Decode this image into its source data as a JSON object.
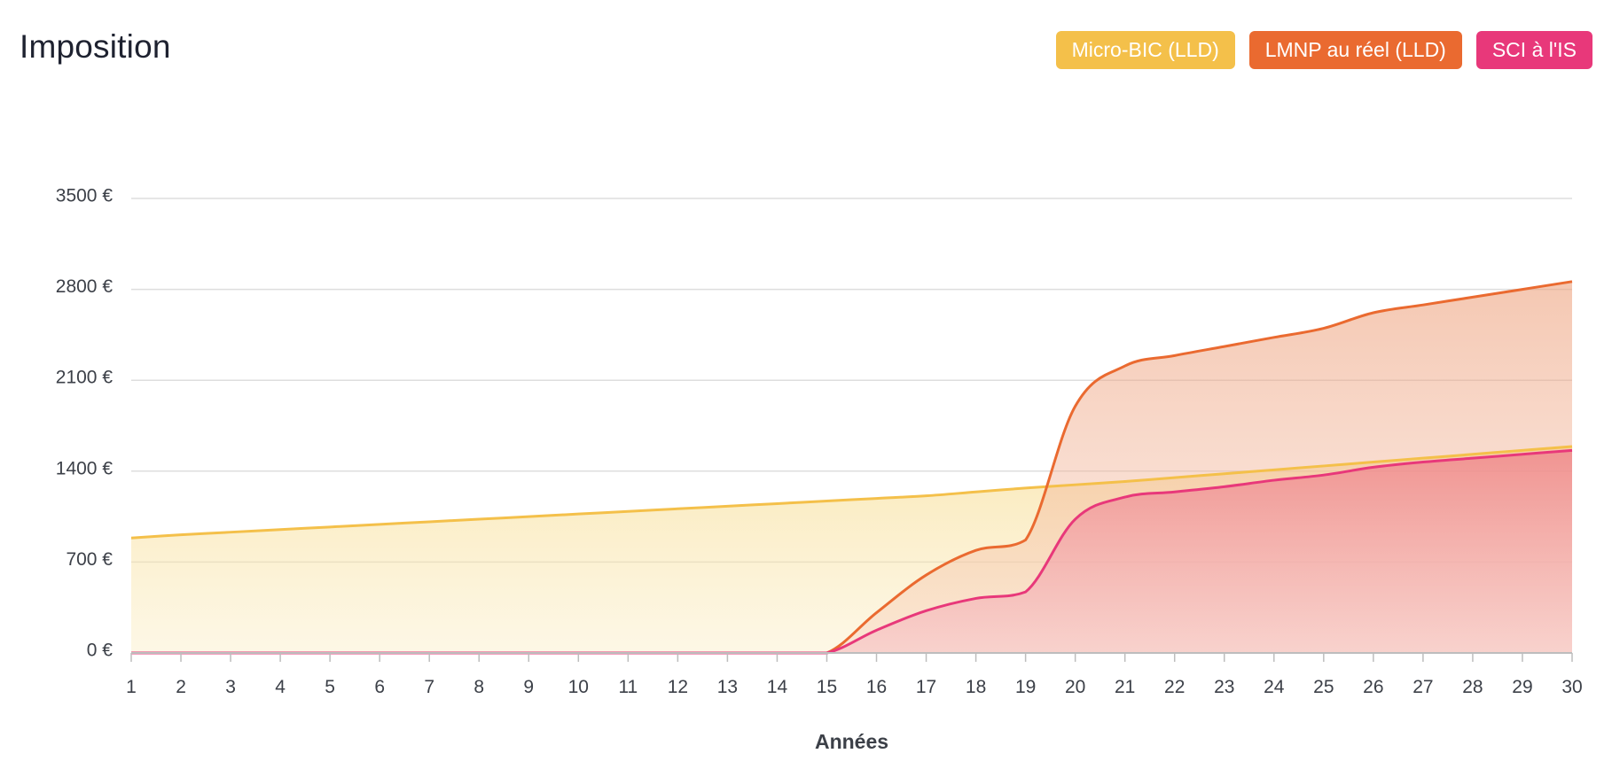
{
  "header": {
    "title": "Imposition"
  },
  "legend": [
    {
      "label": "Micro-BIC (LLD)",
      "color": "#f4c04a"
    },
    {
      "label": "LMNP au réel (LLD)",
      "color": "#ea6a30"
    },
    {
      "label": "SCI à l'IS",
      "color": "#e8387a"
    }
  ],
  "chart_data": {
    "type": "area",
    "title": "",
    "xlabel": "Années",
    "ylabel": "",
    "x": [
      1,
      2,
      3,
      4,
      5,
      6,
      7,
      8,
      9,
      10,
      11,
      12,
      13,
      14,
      15,
      16,
      17,
      18,
      19,
      20,
      21,
      22,
      23,
      24,
      25,
      26,
      27,
      28,
      29,
      30
    ],
    "ylim": [
      0,
      3500
    ],
    "yticks": [
      0,
      700,
      1400,
      2100,
      2800,
      3500
    ],
    "ytick_labels": [
      "0 €",
      "700 €",
      "1400 €",
      "2100 €",
      "2800 €",
      "3500 €"
    ],
    "grid": true,
    "series": [
      {
        "name": "Micro-BIC (LLD)",
        "color": "#f4c04a",
        "values": [
          885,
          910,
          930,
          950,
          970,
          990,
          1010,
          1030,
          1050,
          1070,
          1090,
          1110,
          1130,
          1150,
          1170,
          1190,
          1210,
          1240,
          1270,
          1295,
          1320,
          1350,
          1380,
          1410,
          1440,
          1470,
          1500,
          1530,
          1560,
          1590
        ]
      },
      {
        "name": "LMNP au réel (LLD)",
        "color": "#ea6a30",
        "values": [
          0,
          0,
          0,
          0,
          0,
          0,
          0,
          0,
          0,
          0,
          0,
          0,
          0,
          0,
          0,
          310,
          600,
          790,
          870,
          1900,
          2210,
          2290,
          2360,
          2430,
          2500,
          2620,
          2680,
          2740,
          2800,
          2860
        ]
      },
      {
        "name": "SCI à l'IS",
        "color": "#e8387a",
        "values": [
          0,
          0,
          0,
          0,
          0,
          0,
          0,
          0,
          0,
          0,
          0,
          0,
          0,
          0,
          0,
          175,
          325,
          420,
          470,
          1030,
          1200,
          1240,
          1280,
          1330,
          1370,
          1430,
          1470,
          1500,
          1530,
          1560
        ]
      }
    ]
  }
}
